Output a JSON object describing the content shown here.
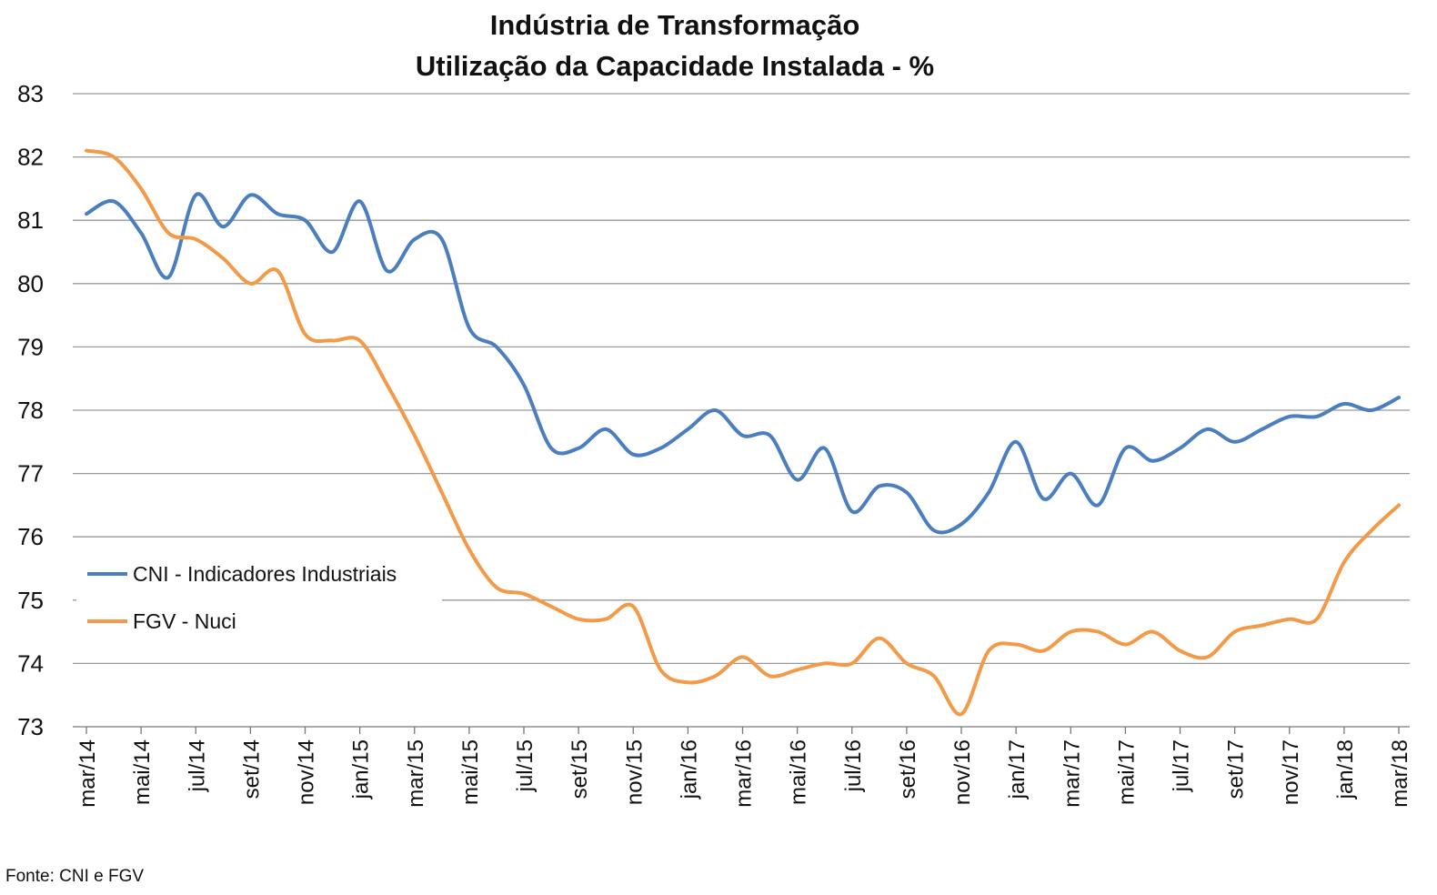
{
  "chart_data": {
    "type": "line",
    "title": "Indústria de Transformação",
    "subtitle": "Utilização da Capacidade Instalada - %",
    "xlabel": "",
    "ylabel": "",
    "ylim": [
      73,
      83
    ],
    "yticks": [
      73,
      74,
      75,
      76,
      77,
      78,
      79,
      80,
      81,
      82,
      83
    ],
    "grid": true,
    "legend_position": "left",
    "x": [
      "mar/14",
      "abr/14",
      "mai/14",
      "jun/14",
      "jul/14",
      "ago/14",
      "set/14",
      "out/14",
      "nov/14",
      "dez/14",
      "jan/15",
      "fev/15",
      "mar/15",
      "abr/15",
      "mai/15",
      "jun/15",
      "jul/15",
      "ago/15",
      "set/15",
      "out/15",
      "nov/15",
      "dez/15",
      "jan/16",
      "fev/16",
      "mar/16",
      "abr/16",
      "mai/16",
      "jun/16",
      "jul/16",
      "ago/16",
      "set/16",
      "out/16",
      "nov/16",
      "dez/16",
      "jan/17",
      "fev/17",
      "mar/17",
      "abr/17",
      "mai/17",
      "jun/17",
      "jul/17",
      "ago/17",
      "set/17",
      "out/17",
      "nov/17",
      "dez/17",
      "jan/18",
      "fev/18",
      "mar/18"
    ],
    "x_tick_labels": [
      "mar/14",
      "mai/14",
      "jul/14",
      "set/14",
      "nov/14",
      "jan/15",
      "mar/15",
      "mai/15",
      "jul/15",
      "set/15",
      "nov/15",
      "jan/16",
      "mar/16",
      "mai/16",
      "jul/16",
      "set/16",
      "nov/16",
      "jan/17",
      "mar/17",
      "mai/17",
      "jul/17",
      "set/17",
      "nov/17",
      "jan/18",
      "mar/18"
    ],
    "series": [
      {
        "name": "CNI - Indicadores Industriais",
        "color": "#4a7ebf",
        "values": [
          81.1,
          81.3,
          80.8,
          80.1,
          81.4,
          80.9,
          81.4,
          81.1,
          81.0,
          80.5,
          81.3,
          80.2,
          80.7,
          80.7,
          79.3,
          79.0,
          78.4,
          77.4,
          77.4,
          77.7,
          77.3,
          77.4,
          77.7,
          78.0,
          77.6,
          77.6,
          76.9,
          77.4,
          76.4,
          76.8,
          76.7,
          76.1,
          76.2,
          76.7,
          77.5,
          76.6,
          77.0,
          76.5,
          77.4,
          77.2,
          77.4,
          77.7,
          77.5,
          77.7,
          77.9,
          77.9,
          78.1,
          78.0,
          78.2
        ]
      },
      {
        "name": "FGV - Nuci",
        "color": "#f29a48",
        "values": [
          82.1,
          82.0,
          81.5,
          80.8,
          80.7,
          80.4,
          80.0,
          80.2,
          79.2,
          79.1,
          79.1,
          78.4,
          77.6,
          76.7,
          75.8,
          75.2,
          75.1,
          74.9,
          74.7,
          74.7,
          74.9,
          73.9,
          73.7,
          73.8,
          74.1,
          73.8,
          73.9,
          74.0,
          74.0,
          74.4,
          74.0,
          73.8,
          73.2,
          74.2,
          74.3,
          74.2,
          74.5,
          74.5,
          74.3,
          74.5,
          74.2,
          74.1,
          74.5,
          74.6,
          74.7,
          74.7,
          75.6,
          76.1,
          76.5
        ]
      }
    ]
  },
  "source": "Fonte: CNI e FGV"
}
